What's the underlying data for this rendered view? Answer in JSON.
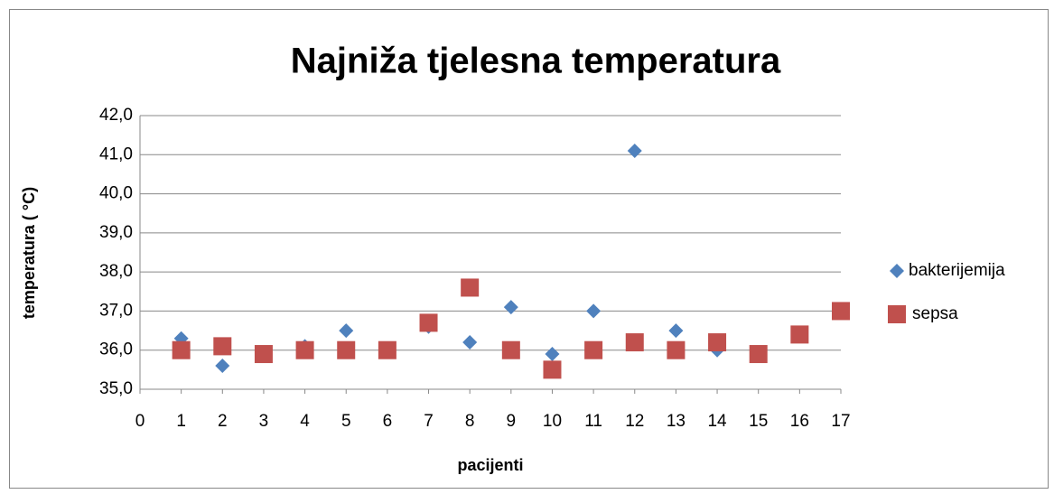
{
  "chart_data": {
    "type": "scatter",
    "title": "Najniža tjelesna temperatura",
    "xlabel": "pacijenti",
    "ylabel": "temperatura ( °C)",
    "xlim": [
      0,
      17
    ],
    "xticks": [
      0,
      1,
      2,
      3,
      4,
      5,
      6,
      7,
      8,
      9,
      10,
      11,
      12,
      13,
      14,
      15,
      16,
      17
    ],
    "ylim": [
      35,
      42
    ],
    "yticks": [
      {
        "value": 35,
        "label": "35,0"
      },
      {
        "value": 36,
        "label": "36,0"
      },
      {
        "value": 37,
        "label": "37,0"
      },
      {
        "value": 38,
        "label": "38,0"
      },
      {
        "value": 39,
        "label": "39,0"
      },
      {
        "value": 40,
        "label": "40,0"
      },
      {
        "value": 41,
        "label": "41,0"
      },
      {
        "value": 42,
        "label": "42,0"
      }
    ],
    "grid": true,
    "legend": "right",
    "series": [
      {
        "name": "bakterijemija",
        "color": "#4f81bd",
        "marker": "diamond",
        "x": [
          1,
          2,
          4,
          5,
          7,
          8,
          9,
          10,
          11,
          12,
          13,
          14
        ],
        "values": [
          36.3,
          35.6,
          36.1,
          36.5,
          36.6,
          36.2,
          37.1,
          35.9,
          37.0,
          41.1,
          36.5,
          36.0
        ]
      },
      {
        "name": "sepsa",
        "color": "#c0504d",
        "marker": "square",
        "x": [
          1,
          2,
          3,
          4,
          5,
          6,
          7,
          8,
          9,
          10,
          11,
          12,
          13,
          14,
          15,
          16,
          17
        ],
        "values": [
          36.0,
          36.1,
          35.9,
          36.0,
          36.0,
          36.0,
          36.7,
          37.6,
          36.0,
          35.5,
          36.0,
          36.2,
          36.0,
          36.2,
          35.9,
          36.4,
          37.0
        ]
      }
    ]
  }
}
